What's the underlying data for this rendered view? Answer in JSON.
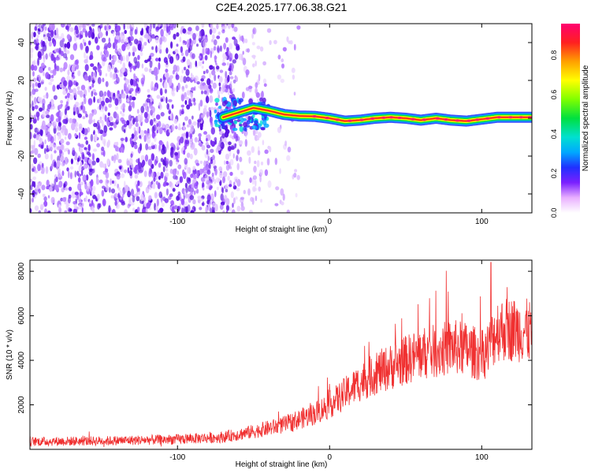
{
  "title": "C2E4.2025.177.06.38.G21",
  "chart_data": [
    {
      "type": "heatmap",
      "xlabel": "Height of straight line (km)",
      "ylabel": "Frequency (Hz)",
      "xlim": [
        -197,
        133
      ],
      "ylim": [
        -50,
        50
      ],
      "xticks": [
        "-100",
        "0",
        "100"
      ],
      "yticks": [
        "-40",
        "-20",
        "0",
        "20",
        "40"
      ],
      "colorbar": {
        "label": "Normalized spectral amplitude",
        "range": [
          0,
          0.96
        ],
        "ticks": [
          "0.0",
          "0.2",
          "0.4",
          "0.6",
          "0.8"
        ]
      },
      "signal_track": [
        {
          "x": -70,
          "y": 0.5
        },
        {
          "x": -60,
          "y": 3.0
        },
        {
          "x": -50,
          "y": 5.5
        },
        {
          "x": -40,
          "y": 4.0
        },
        {
          "x": -30,
          "y": 2.0
        },
        {
          "x": -20,
          "y": 1.2
        },
        {
          "x": -10,
          "y": 1.0
        },
        {
          "x": 0,
          "y": 0.0
        },
        {
          "x": 10,
          "y": -1.5
        },
        {
          "x": 20,
          "y": -1.0
        },
        {
          "x": 30,
          "y": 0.0
        },
        {
          "x": 40,
          "y": 0.5
        },
        {
          "x": 50,
          "y": 0.0
        },
        {
          "x": 60,
          "y": -1.0
        },
        {
          "x": 70,
          "y": 0.0
        },
        {
          "x": 80,
          "y": -1.0
        },
        {
          "x": 90,
          "y": -1.5
        },
        {
          "x": 100,
          "y": -0.5
        },
        {
          "x": 110,
          "y": 0.5
        },
        {
          "x": 120,
          "y": 0.5
        },
        {
          "x": 133,
          "y": 0.5
        }
      ],
      "noise_region_x": [
        -197,
        -20
      ]
    },
    {
      "type": "line",
      "xlabel": "Height of straight line (km)",
      "ylabel": "SNR (10 * v/v)",
      "xlim": [
        -197,
        133
      ],
      "ylim": [
        0,
        8500
      ],
      "xticks": [
        "-100",
        "0",
        "100"
      ],
      "yticks": [
        "2000",
        "4000",
        "6000",
        "8000"
      ],
      "series_color": "#f03030",
      "envelope": [
        {
          "x": -197,
          "y": 350
        },
        {
          "x": -150,
          "y": 380
        },
        {
          "x": -100,
          "y": 450
        },
        {
          "x": -70,
          "y": 550
        },
        {
          "x": -50,
          "y": 800
        },
        {
          "x": -30,
          "y": 1100
        },
        {
          "x": -10,
          "y": 1600
        },
        {
          "x": 0,
          "y": 2000
        },
        {
          "x": 10,
          "y": 2500
        },
        {
          "x": 20,
          "y": 3000
        },
        {
          "x": 30,
          "y": 3400
        },
        {
          "x": 40,
          "y": 3700
        },
        {
          "x": 50,
          "y": 4000
        },
        {
          "x": 60,
          "y": 4300
        },
        {
          "x": 70,
          "y": 4400
        },
        {
          "x": 80,
          "y": 4600
        },
        {
          "x": 90,
          "y": 4500
        },
        {
          "x": 100,
          "y": 4200
        },
        {
          "x": 105,
          "y": 4600
        },
        {
          "x": 110,
          "y": 5400
        },
        {
          "x": 120,
          "y": 5400
        },
        {
          "x": 133,
          "y": 5300
        }
      ],
      "peak": {
        "x": 106,
        "y": 8400
      }
    }
  ]
}
